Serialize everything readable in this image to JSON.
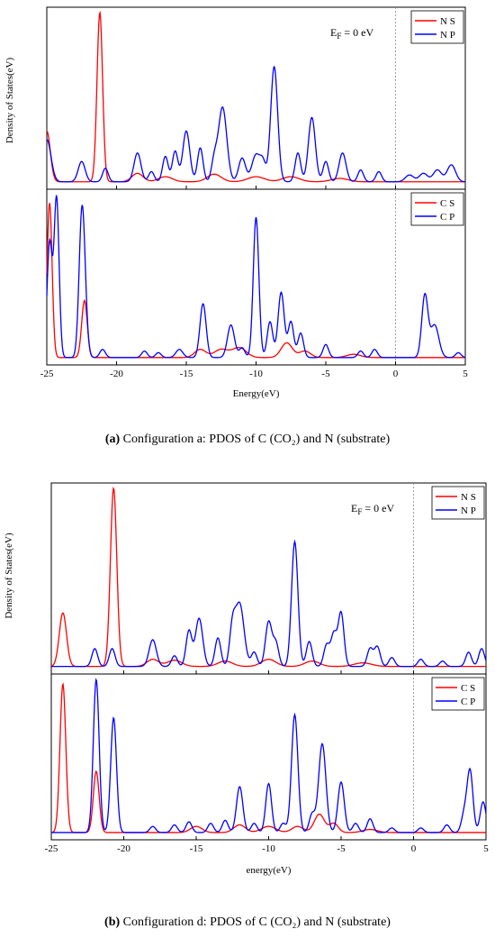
{
  "figures": [
    {
      "id": "a",
      "caption_label": "(a)",
      "caption_text": " Configuration a: PDOS of C (CO₂) and N (substrate)",
      "ylabel": "Density of States(eV)",
      "xlabel": "Energy(eV)",
      "annotation": "E_F = 0 eV"
    },
    {
      "id": "b",
      "caption_label": "(b)",
      "caption_text": " Configuration d: PDOS of C (CO₂) and N (substrate)",
      "ylabel": "Density of States(eV)",
      "xlabel": "energy(eV)",
      "annotation": "E_F = 0 eV"
    }
  ],
  "colors": {
    "s": "#ff0000",
    "p": "#0000ff",
    "fermi": "#888888"
  },
  "chart_data": [
    {
      "type": "line",
      "figure": "a",
      "panel": "top",
      "xlim": [
        -25,
        5
      ],
      "ylim": [
        0,
        1
      ],
      "xticks": [
        -25,
        -20,
        -15,
        -10,
        -5,
        0,
        5
      ],
      "fermi_x": 0,
      "series": [
        {
          "name": "N S",
          "color": "#ff0000",
          "peaks": [
            [
              -25.0,
              0.3,
              0.25
            ],
            [
              -21.2,
              1.0,
              0.2
            ],
            [
              -18.5,
              0.05,
              0.4
            ],
            [
              -16.5,
              0.03,
              0.5
            ],
            [
              -13.0,
              0.045,
              0.5
            ],
            [
              -10.0,
              0.03,
              0.6
            ],
            [
              -7.5,
              0.03,
              0.6
            ],
            [
              -4.0,
              0.02,
              0.6
            ]
          ]
        },
        {
          "name": "N P",
          "color": "#0000ff",
          "peaks": [
            [
              -25.0,
              0.25,
              0.3
            ],
            [
              -22.5,
              0.12,
              0.25
            ],
            [
              -20.8,
              0.08,
              0.2
            ],
            [
              -18.5,
              0.17,
              0.25
            ],
            [
              -17.5,
              0.06,
              0.2
            ],
            [
              -16.5,
              0.15,
              0.2
            ],
            [
              -15.8,
              0.18,
              0.2
            ],
            [
              -15.0,
              0.3,
              0.25
            ],
            [
              -14.0,
              0.2,
              0.2
            ],
            [
              -13.0,
              0.12,
              0.2
            ],
            [
              -12.4,
              0.44,
              0.3
            ],
            [
              -11.0,
              0.14,
              0.25
            ],
            [
              -10.0,
              0.16,
              0.3
            ],
            [
              -9.5,
              0.1,
              0.2
            ],
            [
              -8.7,
              0.68,
              0.25
            ],
            [
              -7.0,
              0.17,
              0.2
            ],
            [
              -6.0,
              0.38,
              0.25
            ],
            [
              -5.0,
              0.12,
              0.2
            ],
            [
              -3.8,
              0.17,
              0.25
            ],
            [
              -2.5,
              0.07,
              0.2
            ],
            [
              -1.2,
              0.06,
              0.2
            ],
            [
              1.0,
              0.04,
              0.3
            ],
            [
              2.0,
              0.05,
              0.3
            ],
            [
              3.0,
              0.07,
              0.3
            ],
            [
              4.0,
              0.1,
              0.3
            ]
          ]
        }
      ]
    },
    {
      "type": "line",
      "figure": "a",
      "panel": "bottom",
      "xlim": [
        -25,
        5
      ],
      "ylim": [
        0,
        1
      ],
      "xticks": [
        -25,
        -20,
        -15,
        -10,
        -5,
        0,
        5
      ],
      "fermi_x": 0,
      "series": [
        {
          "name": "C S",
          "color": "#ff0000",
          "peaks": [
            [
              -24.8,
              0.95,
              0.18
            ],
            [
              -22.3,
              0.35,
              0.2
            ],
            [
              -14.0,
              0.05,
              0.4
            ],
            [
              -12.5,
              0.05,
              0.5
            ],
            [
              -11.2,
              0.06,
              0.5
            ],
            [
              -7.8,
              0.09,
              0.4
            ],
            [
              -6.5,
              0.04,
              0.4
            ],
            [
              -3.0,
              0.02,
              0.5
            ]
          ]
        },
        {
          "name": "C P",
          "color": "#0000ff",
          "peaks": [
            [
              -24.8,
              0.7,
              0.18
            ],
            [
              -24.3,
              0.98,
              0.18
            ],
            [
              -22.5,
              0.77,
              0.2
            ],
            [
              -22.3,
              0.25,
              0.2
            ],
            [
              -21.0,
              0.05,
              0.2
            ],
            [
              -18.0,
              0.04,
              0.2
            ],
            [
              -17.0,
              0.03,
              0.2
            ],
            [
              -15.5,
              0.05,
              0.25
            ],
            [
              -13.8,
              0.33,
              0.22
            ],
            [
              -11.8,
              0.2,
              0.25
            ],
            [
              -11.0,
              0.06,
              0.2
            ],
            [
              -10.0,
              0.86,
              0.2
            ],
            [
              -9.0,
              0.22,
              0.2
            ],
            [
              -8.2,
              0.4,
              0.22
            ],
            [
              -7.5,
              0.22,
              0.2
            ],
            [
              -6.8,
              0.15,
              0.2
            ],
            [
              -5.0,
              0.08,
              0.2
            ],
            [
              -2.5,
              0.04,
              0.2
            ],
            [
              -1.5,
              0.05,
              0.2
            ],
            [
              2.1,
              0.38,
              0.22
            ],
            [
              2.8,
              0.2,
              0.3
            ],
            [
              4.5,
              0.03,
              0.2
            ]
          ]
        }
      ]
    },
    {
      "type": "line",
      "figure": "b",
      "panel": "top",
      "xlim": [
        -25,
        5
      ],
      "ylim": [
        0,
        1
      ],
      "xticks": [
        -25,
        -20,
        -15,
        -10,
        -5,
        0,
        5
      ],
      "fermi_x": 0,
      "series": [
        {
          "name": "N S",
          "color": "#ff0000",
          "peaks": [
            [
              -24.2,
              0.3,
              0.25
            ],
            [
              -20.7,
              1.0,
              0.22
            ],
            [
              -18.0,
              0.04,
              0.4
            ],
            [
              -16.5,
              0.035,
              0.5
            ],
            [
              -13.0,
              0.03,
              0.5
            ],
            [
              -10.0,
              0.04,
              0.5
            ],
            [
              -7.0,
              0.03,
              0.5
            ],
            [
              -3.5,
              0.02,
              0.6
            ]
          ]
        },
        {
          "name": "N P",
          "color": "#0000ff",
          "peaks": [
            [
              -22.0,
              0.1,
              0.2
            ],
            [
              -20.8,
              0.1,
              0.2
            ],
            [
              -18.0,
              0.15,
              0.25
            ],
            [
              -16.5,
              0.06,
              0.2
            ],
            [
              -15.5,
              0.2,
              0.2
            ],
            [
              -14.8,
              0.27,
              0.25
            ],
            [
              -13.5,
              0.16,
              0.2
            ],
            [
              -12.5,
              0.2,
              0.2
            ],
            [
              -12.0,
              0.35,
              0.3
            ],
            [
              -11.0,
              0.08,
              0.2
            ],
            [
              -10.0,
              0.25,
              0.22
            ],
            [
              -9.5,
              0.13,
              0.2
            ],
            [
              -8.2,
              0.7,
              0.22
            ],
            [
              -7.2,
              0.14,
              0.2
            ],
            [
              -6.0,
              0.12,
              0.2
            ],
            [
              -5.5,
              0.18,
              0.2
            ],
            [
              -5.0,
              0.3,
              0.2
            ],
            [
              -3.0,
              0.1,
              0.2
            ],
            [
              -2.5,
              0.11,
              0.2
            ],
            [
              -1.5,
              0.05,
              0.2
            ],
            [
              0.5,
              0.04,
              0.2
            ],
            [
              2.0,
              0.03,
              0.2
            ],
            [
              3.8,
              0.08,
              0.2
            ],
            [
              4.7,
              0.1,
              0.2
            ]
          ]
        }
      ]
    },
    {
      "type": "line",
      "figure": "b",
      "panel": "bottom",
      "xlim": [
        -25,
        5
      ],
      "ylim": [
        0,
        1
      ],
      "xticks": [
        -25,
        -20,
        -15,
        -10,
        -5,
        0,
        5
      ],
      "fermi_x": 0,
      "series": [
        {
          "name": "C S",
          "color": "#ff0000",
          "peaks": [
            [
              -24.2,
              0.97,
              0.2
            ],
            [
              -21.9,
              0.4,
              0.2
            ],
            [
              -15.0,
              0.04,
              0.4
            ],
            [
              -12.0,
              0.05,
              0.4
            ],
            [
              -10.0,
              0.04,
              0.5
            ],
            [
              -8.0,
              0.04,
              0.4
            ],
            [
              -6.5,
              0.12,
              0.35
            ],
            [
              -5.5,
              0.06,
              0.3
            ],
            [
              -3.0,
              0.02,
              0.5
            ]
          ]
        },
        {
          "name": "C P",
          "color": "#0000ff",
          "peaks": [
            [
              -21.9,
              1.0,
              0.2
            ],
            [
              -20.7,
              0.75,
              0.2
            ],
            [
              -18.0,
              0.04,
              0.2
            ],
            [
              -16.5,
              0.05,
              0.2
            ],
            [
              -15.5,
              0.07,
              0.2
            ],
            [
              -14.0,
              0.06,
              0.2
            ],
            [
              -13.0,
              0.08,
              0.2
            ],
            [
              -12.0,
              0.3,
              0.22
            ],
            [
              -11.0,
              0.06,
              0.2
            ],
            [
              -10.0,
              0.32,
              0.2
            ],
            [
              -9.0,
              0.06,
              0.2
            ],
            [
              -8.2,
              0.77,
              0.22
            ],
            [
              -7.0,
              0.12,
              0.2
            ],
            [
              -6.3,
              0.58,
              0.25
            ],
            [
              -5.0,
              0.33,
              0.22
            ],
            [
              -4.0,
              0.06,
              0.2
            ],
            [
              -3.0,
              0.09,
              0.2
            ],
            [
              -1.5,
              0.03,
              0.2
            ],
            [
              0.5,
              0.03,
              0.2
            ],
            [
              2.3,
              0.05,
              0.2
            ],
            [
              3.5,
              0.12,
              0.2
            ],
            [
              3.9,
              0.4,
              0.2
            ],
            [
              4.8,
              0.2,
              0.2
            ]
          ]
        }
      ]
    }
  ]
}
